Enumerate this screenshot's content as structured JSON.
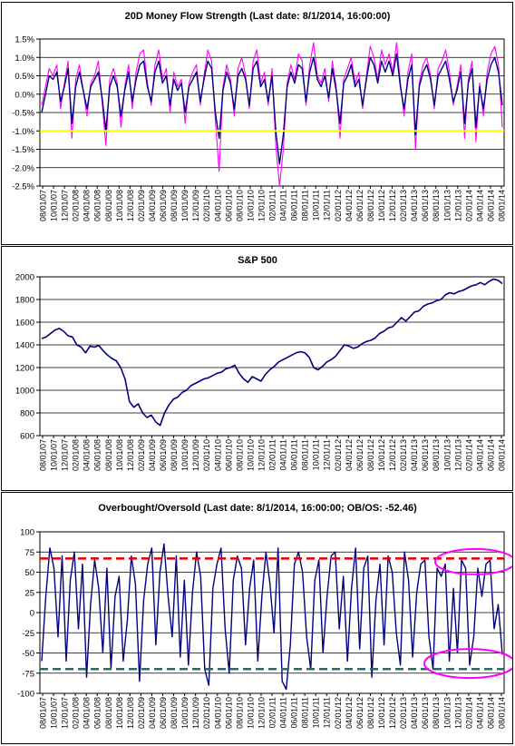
{
  "chart_data": [
    {
      "type": "line",
      "title": "20D Money Flow Strength (Last date: 8/1/2014, 16:00:00)",
      "ylim": [
        -0.025,
        0.015
      ],
      "yticks": [
        0.015,
        0.01,
        0.005,
        0.0,
        -0.005,
        -0.01,
        -0.015,
        -0.02,
        -0.025
      ],
      "ytick_labels": [
        "1.5%",
        "1.0%",
        "0.5%",
        "0.0%",
        "-0.5%",
        "-1.0%",
        "-1.5%",
        "-2.0%",
        "-2.5%"
      ],
      "x_tick_labels": [
        "08/01/07",
        "10/01/07",
        "12/01/07",
        "02/01/08",
        "04/01/08",
        "06/01/08",
        "08/01/08",
        "10/01/08",
        "12/01/08",
        "02/01/09",
        "04/01/09",
        "06/01/09",
        "08/01/09",
        "10/01/09",
        "12/01/09",
        "02/01/10",
        "04/01/10",
        "06/01/10",
        "08/01/10",
        "10/01/10",
        "12/01/10",
        "02/01/11",
        "04/01/11",
        "06/01/11",
        "08/01/11",
        "10/01/11",
        "12/01/11",
        "02/01/12",
        "04/01/12",
        "06/01/12",
        "08/01/12",
        "10/01/12",
        "12/01/12",
        "02/01/13",
        "04/01/13",
        "06/01/13",
        "08/01/13",
        "10/01/13",
        "12/01/13",
        "02/01/14",
        "04/01/14",
        "06/01/14",
        "08/01/14"
      ],
      "reference_lines": [
        {
          "value": -0.01,
          "color": "#ffff00"
        }
      ],
      "grid": true,
      "series": [
        {
          "color": "#ff00ff",
          "values": [
            -0.003,
            0.002,
            0.007,
            0.005,
            0.008,
            -0.004,
            0.003,
            0.009,
            -0.012,
            0.004,
            0.008,
            0.001,
            -0.006,
            0.003,
            0.005,
            0.009,
            -0.002,
            -0.014,
            0.004,
            0.007,
            0.003,
            -0.009,
            0.002,
            0.008,
            -0.004,
            0.006,
            0.011,
            0.012,
            0.003,
            -0.003,
            0.008,
            0.012,
            0.004,
            0.007,
            -0.005,
            0.006,
            0.002,
            0.004,
            -0.008,
            0.003,
            0.006,
            0.008,
            -0.003,
            0.005,
            0.012,
            0.009,
            -0.007,
            -0.021,
            0.002,
            0.008,
            0.004,
            -0.006,
            0.007,
            0.01,
            0.005,
            -0.004,
            0.009,
            0.012,
            0.003,
            0.006,
            -0.003,
            0.007,
            -0.014,
            -0.025,
            -0.015,
            0.003,
            0.008,
            0.004,
            0.011,
            0.009,
            -0.003,
            0.008,
            0.014,
            0.005,
            0.003,
            0.007,
            -0.002,
            0.009,
            0.002,
            -0.012,
            0.004,
            0.007,
            0.01,
            0.003,
            0.006,
            -0.004,
            0.005,
            0.013,
            0.01,
            0.004,
            0.012,
            0.008,
            0.011,
            0.006,
            0.014,
            0.003,
            -0.006,
            0.006,
            0.011,
            -0.015,
            0.003,
            0.008,
            0.01,
            0.005,
            -0.004,
            0.007,
            0.009,
            0.012,
            0.006,
            -0.003,
            0.002,
            0.008,
            -0.012,
            0.004,
            0.009,
            -0.013,
            0.003,
            -0.006,
            0.006,
            0.011,
            0.013,
            0.008,
            -0.009
          ]
        },
        {
          "color": "#000080",
          "values": [
            -0.005,
            0.0,
            0.005,
            0.004,
            0.006,
            -0.002,
            0.002,
            0.007,
            -0.008,
            0.002,
            0.006,
            0.001,
            -0.004,
            0.002,
            0.004,
            0.006,
            -0.001,
            -0.01,
            0.002,
            0.005,
            0.002,
            -0.006,
            0.001,
            0.006,
            -0.002,
            0.004,
            0.008,
            0.009,
            0.002,
            -0.002,
            0.006,
            0.009,
            0.003,
            0.005,
            -0.003,
            0.004,
            0.001,
            0.003,
            -0.005,
            0.002,
            0.004,
            0.006,
            -0.002,
            0.004,
            0.009,
            0.007,
            -0.005,
            -0.012,
            0.001,
            0.006,
            0.003,
            -0.004,
            0.005,
            0.007,
            0.004,
            -0.003,
            0.007,
            0.009,
            0.002,
            0.004,
            -0.002,
            0.005,
            -0.01,
            -0.019,
            -0.011,
            0.002,
            0.006,
            0.003,
            0.008,
            0.007,
            -0.002,
            0.006,
            0.01,
            0.004,
            0.002,
            0.005,
            -0.001,
            0.007,
            0.001,
            -0.008,
            0.003,
            0.005,
            0.008,
            0.002,
            0.004,
            -0.003,
            0.004,
            0.01,
            0.008,
            0.003,
            0.009,
            0.006,
            0.009,
            0.005,
            0.011,
            0.002,
            -0.004,
            0.004,
            0.008,
            -0.011,
            0.002,
            0.006,
            0.008,
            0.004,
            -0.003,
            0.005,
            0.007,
            0.009,
            0.004,
            -0.002,
            0.001,
            0.006,
            -0.008,
            0.003,
            0.007,
            -0.009,
            0.002,
            -0.004,
            0.004,
            0.008,
            0.01,
            0.006,
            -0.003
          ]
        }
      ]
    },
    {
      "type": "line",
      "title": "S&P 500",
      "ylim": [
        600,
        2000
      ],
      "yticks": [
        600,
        800,
        1000,
        1200,
        1400,
        1600,
        1800,
        2000
      ],
      "ytick_labels": [
        "600",
        "800",
        "1000",
        "1200",
        "1400",
        "1600",
        "1800",
        "2000"
      ],
      "x_tick_labels": [
        "08/01/07",
        "10/01/07",
        "12/01/07",
        "02/01/08",
        "04/01/08",
        "06/01/08",
        "08/01/08",
        "10/01/08",
        "12/01/08",
        "02/01/09",
        "04/01/09",
        "06/01/09",
        "08/01/09",
        "10/01/09",
        "12/01/09",
        "02/01/10",
        "04/01/10",
        "06/01/10",
        "08/01/10",
        "10/01/10",
        "12/01/10",
        "02/01/11",
        "04/01/11",
        "06/01/11",
        "08/01/11",
        "10/01/11",
        "12/01/11",
        "02/01/12",
        "04/01/12",
        "06/01/12",
        "08/01/12",
        "10/01/12",
        "12/01/12",
        "02/01/13",
        "04/01/13",
        "06/01/13",
        "08/01/13",
        "10/01/13",
        "12/01/13",
        "02/01/14",
        "04/01/14",
        "06/01/14",
        "08/01/14"
      ],
      "grid": true,
      "series": [
        {
          "color": "#000080",
          "values": [
            1455,
            1470,
            1500,
            1530,
            1545,
            1520,
            1480,
            1470,
            1400,
            1380,
            1330,
            1390,
            1380,
            1395,
            1350,
            1310,
            1280,
            1260,
            1200,
            1100,
            900,
            850,
            880,
            800,
            760,
            780,
            720,
            690,
            800,
            870,
            920,
            940,
            980,
            1000,
            1040,
            1060,
            1080,
            1100,
            1110,
            1130,
            1150,
            1160,
            1190,
            1200,
            1220,
            1150,
            1100,
            1070,
            1120,
            1100,
            1080,
            1140,
            1180,
            1210,
            1250,
            1270,
            1290,
            1310,
            1330,
            1340,
            1330,
            1290,
            1200,
            1180,
            1210,
            1250,
            1270,
            1300,
            1350,
            1400,
            1390,
            1370,
            1380,
            1410,
            1430,
            1440,
            1460,
            1500,
            1520,
            1550,
            1560,
            1600,
            1640,
            1610,
            1650,
            1690,
            1700,
            1740,
            1760,
            1770,
            1790,
            1800,
            1840,
            1860,
            1850,
            1870,
            1880,
            1900,
            1920,
            1930,
            1950,
            1930,
            1960,
            1980,
            1970,
            1940
          ]
        }
      ]
    },
    {
      "type": "line",
      "title": "Overbought/Oversold (Last date: 8/1/2014, 16:00:00; OB/OS: -52.46)",
      "ylim": [
        -100,
        100
      ],
      "yticks": [
        100,
        75,
        50,
        25,
        0,
        -25,
        -50,
        -75,
        -100
      ],
      "ytick_labels": [
        "100",
        "75",
        "50",
        "25",
        "0",
        "-25",
        "-50",
        "-75",
        "-100"
      ],
      "x_tick_labels": [
        "08/01/07",
        "10/01/07",
        "12/01/07",
        "02/01/08",
        "04/01/08",
        "06/01/08",
        "08/01/08",
        "10/01/08",
        "12/01/08",
        "02/01/09",
        "04/01/09",
        "06/01/09",
        "08/01/09",
        "10/01/09",
        "12/01/09",
        "02/01/10",
        "04/01/10",
        "06/01/10",
        "08/01/10",
        "10/01/10",
        "12/01/10",
        "02/01/11",
        "04/01/11",
        "06/01/11",
        "08/01/11",
        "10/01/11",
        "12/01/11",
        "02/01/12",
        "04/01/12",
        "06/01/12",
        "08/01/12",
        "10/01/12",
        "12/01/12",
        "02/01/13",
        "04/01/13",
        "06/01/13",
        "08/01/13",
        "10/01/13",
        "12/01/13",
        "02/01/14",
        "04/01/14",
        "06/01/14",
        "08/01/14"
      ],
      "reference_lines": [
        {
          "value": 67,
          "color": "#e00000"
        },
        {
          "value": -70,
          "color": "#336666"
        }
      ],
      "highlight_ellipses": "magenta",
      "grid": true,
      "series": [
        {
          "color": "#000080",
          "values": [
            -60,
            20,
            80,
            55,
            -30,
            70,
            -60,
            40,
            75,
            -20,
            60,
            -80,
            10,
            65,
            30,
            -50,
            55,
            -70,
            20,
            45,
            -60,
            -10,
            70,
            35,
            -85,
            15,
            60,
            80,
            -40,
            50,
            85,
            20,
            -30,
            70,
            -55,
            40,
            -65,
            25,
            75,
            45,
            -70,
            -90,
            30,
            60,
            80,
            -20,
            -75,
            40,
            70,
            55,
            -40,
            30,
            65,
            -60,
            20,
            75,
            35,
            -25,
            80,
            -85,
            -95,
            -40,
            60,
            75,
            50,
            -30,
            -70,
            40,
            65,
            -50,
            20,
            70,
            75,
            -20,
            45,
            -60,
            30,
            80,
            -45,
            55,
            70,
            -80,
            15,
            60,
            -40,
            70,
            50,
            -25,
            -65,
            75,
            40,
            -55,
            25,
            60,
            65,
            -30,
            -70,
            55,
            45,
            60,
            -60,
            30,
            -50,
            65,
            55,
            -65,
            -30,
            55,
            20,
            60,
            65,
            -20,
            10,
            -52
          ]
        }
      ]
    }
  ]
}
